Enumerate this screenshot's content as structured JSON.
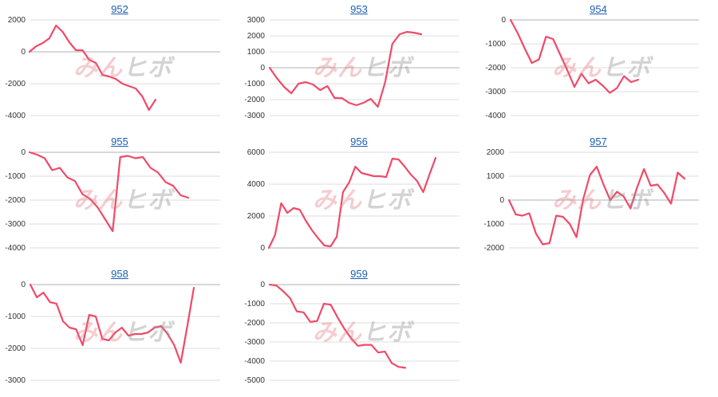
{
  "watermark": {
    "part_a": "みん",
    "part_b": "ヒボ"
  },
  "colors": {
    "line": "#f04a68",
    "grid": "#dddddd",
    "baseline": "#b0b0b0",
    "title": "#1a5fb4"
  },
  "chart_data": [
    {
      "type": "line",
      "title": "952",
      "ylim": [
        -4000,
        2000
      ],
      "yticks": [
        2000,
        0,
        -2000,
        -4000
      ],
      "values": [
        0,
        350,
        550,
        850,
        1650,
        1250,
        600,
        100,
        100,
        -500,
        -700,
        -1450,
        -1550,
        -1700,
        -2000,
        -2150,
        -2300,
        -2800,
        -3650,
        -3000
      ]
    },
    {
      "type": "line",
      "title": "953",
      "ylim": [
        -3000,
        3000
      ],
      "yticks": [
        3000,
        2000,
        1000,
        0,
        -1000,
        -2000,
        -3000
      ],
      "values": [
        0,
        -650,
        -1200,
        -1600,
        -1000,
        -900,
        -1050,
        -1400,
        -1150,
        -1900,
        -1900,
        -2200,
        -2350,
        -2200,
        -1950,
        -2450,
        -900,
        1500,
        2100,
        2250,
        2200,
        2100
      ]
    },
    {
      "type": "line",
      "title": "954",
      "ylim": [
        -4000,
        0
      ],
      "yticks": [
        0,
        -1000,
        -2000,
        -3000,
        -4000
      ],
      "values": [
        0,
        -550,
        -1200,
        -1800,
        -1650,
        -700,
        -800,
        -1450,
        -2100,
        -2800,
        -2250,
        -2650,
        -2500,
        -2750,
        -3050,
        -2850,
        -2350,
        -2600,
        -2500
      ]
    },
    {
      "type": "line",
      "title": "955",
      "ylim": [
        -4000,
        0
      ],
      "yticks": [
        0,
        -1000,
        -2000,
        -3000,
        -4000
      ],
      "values": [
        0,
        -100,
        -250,
        -750,
        -650,
        -1050,
        -1200,
        -1750,
        -1950,
        -2300,
        -2800,
        -3300,
        -200,
        -150,
        -250,
        -200,
        -650,
        -850,
        -1250,
        -1400,
        -1800,
        -1900
      ]
    },
    {
      "type": "line",
      "title": "956",
      "ylim": [
        0,
        6000
      ],
      "yticks": [
        6000,
        4000,
        2000,
        0
      ],
      "values": [
        0,
        800,
        2800,
        2200,
        2500,
        2400,
        1700,
        1100,
        600,
        150,
        100,
        700,
        3500,
        4100,
        5100,
        4700,
        4600,
        4500,
        4500,
        4450,
        5600,
        5550,
        5100,
        4600,
        4200,
        3500,
        4600,
        5650
      ]
    },
    {
      "type": "line",
      "title": "957",
      "ylim": [
        -2000,
        2000
      ],
      "yticks": [
        2000,
        1000,
        0,
        -1000,
        -2000
      ],
      "values": [
        0,
        -600,
        -650,
        -550,
        -1400,
        -1850,
        -1800,
        -650,
        -700,
        -1000,
        -1550,
        50,
        1050,
        1400,
        650,
        0,
        350,
        150,
        -350,
        550,
        1300,
        600,
        650,
        300,
        -150,
        1150,
        900
      ]
    },
    {
      "type": "line",
      "title": "958",
      "ylim": [
        -3000,
        0
      ],
      "yticks": [
        0,
        -1000,
        -2000,
        -3000
      ],
      "values": [
        0,
        -400,
        -250,
        -550,
        -600,
        -1150,
        -1350,
        -1400,
        -1900,
        -950,
        -1000,
        -1700,
        -1750,
        -1500,
        -1350,
        -1600,
        -1550,
        -1550,
        -1500,
        -1350,
        -1300,
        -1550,
        -1900,
        -2450,
        -1300,
        -100
      ]
    },
    {
      "type": "line",
      "title": "959",
      "ylim": [
        -5000,
        0
      ],
      "yticks": [
        0,
        -1000,
        -2000,
        -3000,
        -4000,
        -5000
      ],
      "values": [
        0,
        -50,
        -350,
        -700,
        -1400,
        -1450,
        -1950,
        -1900,
        -1000,
        -1050,
        -1700,
        -2300,
        -2800,
        -3200,
        -3150,
        -3150,
        -3550,
        -3500,
        -4100,
        -4300,
        -4350
      ]
    }
  ]
}
